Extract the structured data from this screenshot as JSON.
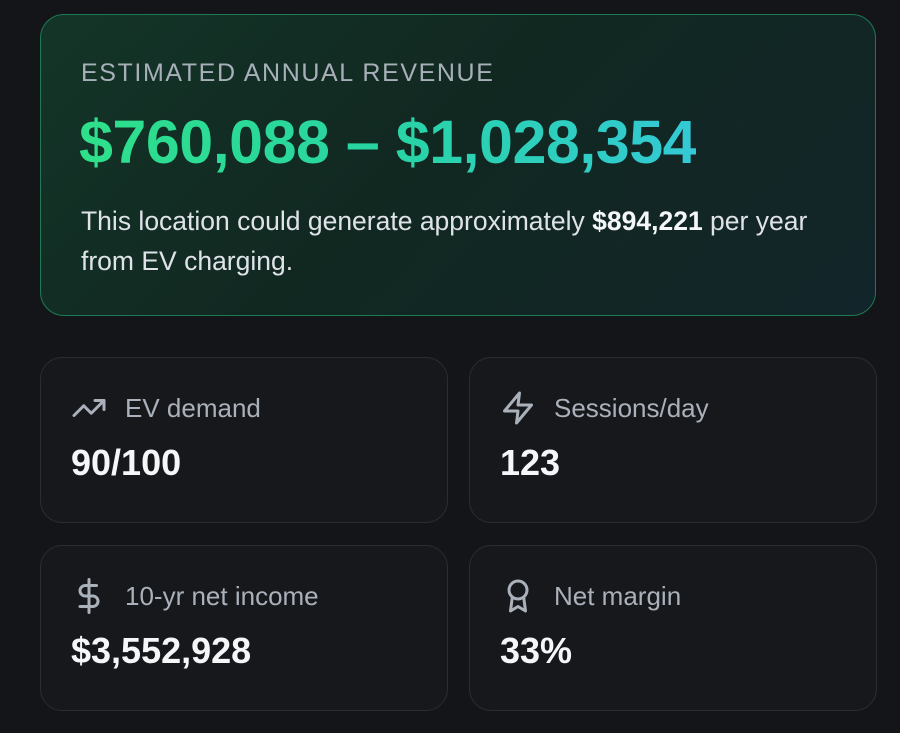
{
  "revenue": {
    "label": "ESTIMATED ANNUAL REVENUE",
    "range": "$760,088 – $1,028,354",
    "desc_prefix": "This location could generate approximately ",
    "desc_value": "$894,221",
    "desc_suffix": " per year from EV charging."
  },
  "stats": {
    "demand": {
      "icon": "trending-up-icon",
      "label": "EV demand",
      "value": "90/100"
    },
    "sessions": {
      "icon": "lightning-icon",
      "label": "Sessions/day",
      "value": "123"
    },
    "income": {
      "icon": "dollar-sign-icon",
      "label": "10-yr net income",
      "value": "$3,552,928"
    },
    "margin": {
      "icon": "award-icon",
      "label": "Net margin",
      "value": "33%"
    }
  },
  "colors": {
    "background": "#141518",
    "accent_green": "#2ee08a",
    "accent_cyan": "#34c9d6",
    "card_border_green": "#1d7a52",
    "muted_text": "#aab1ba"
  }
}
